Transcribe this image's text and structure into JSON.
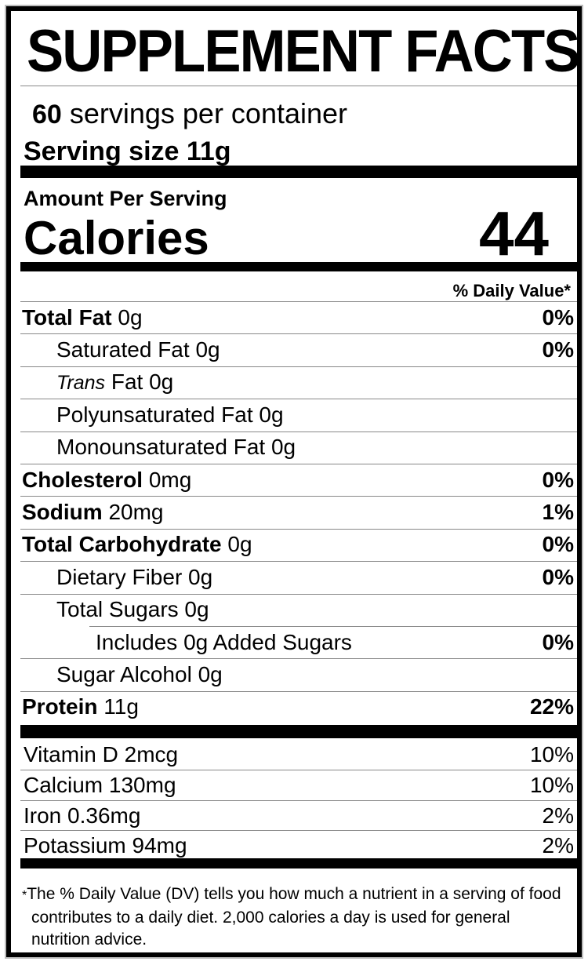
{
  "title": "SUPPLEMENT FACTS",
  "servings": {
    "count": "60",
    "text": "servings per container"
  },
  "serving_size": "Serving size 11g",
  "amount_per_serving": "Amount Per Serving",
  "calories": {
    "label": "Calories",
    "value": "44"
  },
  "daily_value_header": "% Daily Value*",
  "nutrients": [
    {
      "name": "Total Fat",
      "amount": "0g",
      "dv": "0%",
      "level": 0,
      "bold": true
    },
    {
      "name": "Saturated Fat",
      "amount": "0g",
      "dv": "0%",
      "level": 1
    },
    {
      "name": "Trans",
      "name_suffix": "Fat",
      "amount": "0g",
      "dv": "",
      "level": 1,
      "italic": true
    },
    {
      "name": "Polyunsaturated Fat",
      "amount": "0g",
      "dv": "",
      "level": 1
    },
    {
      "name": "Monounsaturated Fat",
      "amount": "0g",
      "dv": "",
      "level": 1
    },
    {
      "name": "Cholesterol",
      "amount": "0mg",
      "dv": "0%",
      "level": 0,
      "bold": true
    },
    {
      "name": "Sodium",
      "amount": "20mg",
      "dv": "1%",
      "level": 0,
      "bold": true
    },
    {
      "name": "Total Carbohydrate",
      "amount": "0g",
      "dv": "0%",
      "level": 0,
      "bold": true
    },
    {
      "name": "Dietary Fiber",
      "amount": "0g",
      "dv": "0%",
      "level": 1
    },
    {
      "name": "Total Sugars",
      "amount": "0g",
      "dv": "",
      "level": 1
    },
    {
      "name": "Includes 0g Added Sugars",
      "amount": "",
      "dv": "0%",
      "level": 2
    },
    {
      "name": "Sugar Alcohol",
      "amount": "0g",
      "dv": "",
      "level": 1
    },
    {
      "name": "Protein",
      "amount": "11g",
      "dv": "22%",
      "level": 0,
      "bold": true
    }
  ],
  "vitamins": [
    {
      "name": "Vitamin D 2mcg",
      "dv": "10%"
    },
    {
      "name": "Calcium 130mg",
      "dv": "10%"
    },
    {
      "name": "Iron 0.36mg",
      "dv": "2%"
    },
    {
      "name": "Potassium 94mg",
      "dv": "2%"
    }
  ],
  "footnote": {
    "star": "*",
    "text": "The % Daily Value (DV) tells you how much a nutrient in a serving of food contributes to a daily diet. 2,000 calories a day is used for general nutrition advice."
  }
}
